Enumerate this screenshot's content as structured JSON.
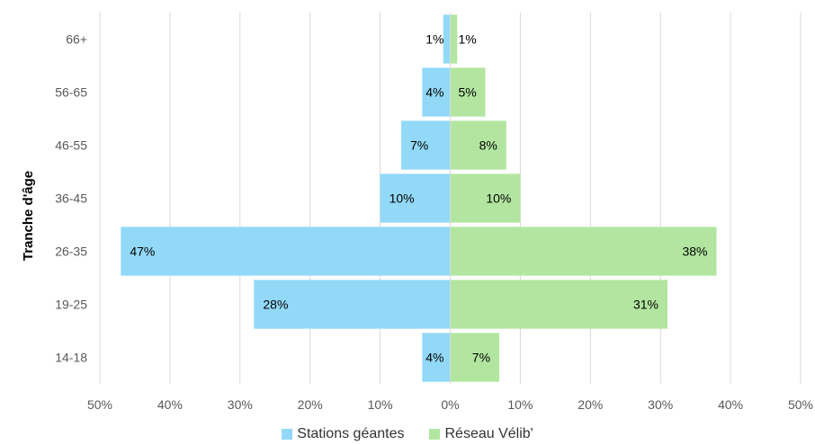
{
  "chart_data": {
    "type": "bar",
    "orientation": "horizontal-diverging",
    "ylabel": "Tranche d'âge",
    "categories": [
      "66+",
      "56-65",
      "46-55",
      "36-45",
      "26-35",
      "19-25",
      "14-18"
    ],
    "series": [
      {
        "name": "Stations géantes",
        "color": "#92D9F7",
        "side": "left",
        "values": [
          1,
          4,
          7,
          10,
          47,
          28,
          4
        ],
        "labels": [
          "1%",
          "4%",
          "7%",
          "10%",
          "47%",
          "28%",
          "4%"
        ]
      },
      {
        "name": "Réseau Vélib'",
        "color": "#B2E6A0",
        "side": "right",
        "values": [
          1,
          5,
          8,
          10,
          38,
          31,
          7
        ],
        "labels": [
          "1%",
          "5%",
          "8%",
          "10%",
          "38%",
          "31%",
          "7%"
        ]
      }
    ],
    "xlim": [
      -50,
      50
    ],
    "xticks": [
      -50,
      -40,
      -30,
      -20,
      -10,
      0,
      10,
      20,
      30,
      40,
      50
    ],
    "xtick_labels": [
      "50%",
      "40%",
      "30%",
      "20%",
      "10%",
      "0%",
      "10%",
      "20%",
      "30%",
      "40%",
      "50%"
    ],
    "grid": true,
    "legend_position": "bottom"
  }
}
